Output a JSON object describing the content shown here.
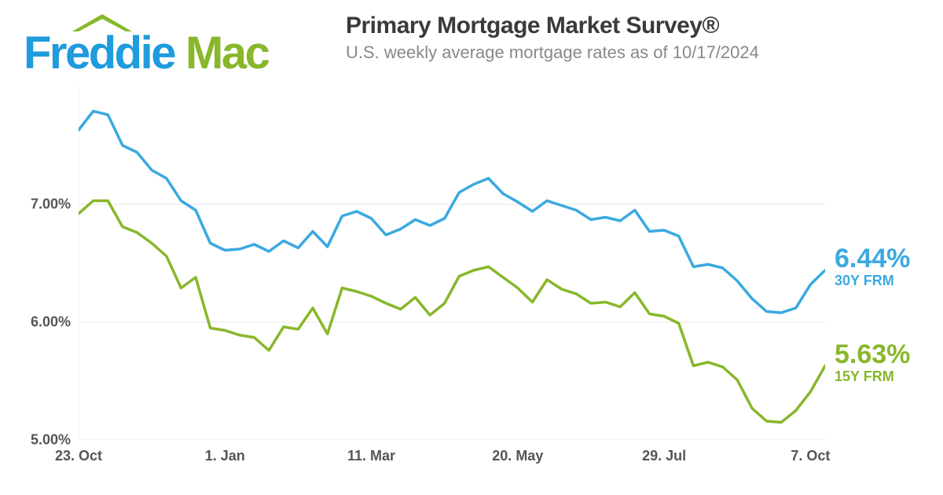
{
  "logo": {
    "word1": "Freddie",
    "word2": "Mac",
    "color1": "#1f9bde",
    "color2": "#88b72a",
    "roof_color": "#88b72a"
  },
  "title": "Primary Mortgage Market Survey®",
  "subtitle": "U.S. weekly average mortgage rates as of 10/17/2024",
  "title_fontsize": 30,
  "subtitle_fontsize": 22,
  "chart": {
    "type": "line",
    "background_color": "#ffffff",
    "grid_color": "#e8e8e8",
    "axis_color": "#e8e8e8",
    "ylim": [
      5.0,
      8.0
    ],
    "y_ticks": [
      {
        "value": 5.0,
        "label": "5.00%"
      },
      {
        "value": 6.0,
        "label": "6.00%"
      },
      {
        "value": 7.0,
        "label": "7.00%"
      }
    ],
    "x_count": 52,
    "x_ticks": [
      {
        "index": 0,
        "label": "23. Oct"
      },
      {
        "index": 10,
        "label": "1. Jan"
      },
      {
        "index": 20,
        "label": "11. Mar"
      },
      {
        "index": 30,
        "label": "20. May"
      },
      {
        "index": 40,
        "label": "29. Jul"
      },
      {
        "index": 50,
        "label": "7. Oct"
      }
    ],
    "tick_fontsize": 18,
    "line_width": 3.5,
    "series": [
      {
        "name": "30Y FRM",
        "color": "#3aa9e0",
        "end_rate": "6.44%",
        "end_label_fontsize": 34,
        "end_name_fontsize": 18,
        "values": [
          7.63,
          7.79,
          7.76,
          7.5,
          7.44,
          7.29,
          7.22,
          7.03,
          6.95,
          6.67,
          6.61,
          6.62,
          6.66,
          6.6,
          6.69,
          6.63,
          6.77,
          6.64,
          6.9,
          6.94,
          6.88,
          6.74,
          6.79,
          6.87,
          6.82,
          6.88,
          7.1,
          7.17,
          7.22,
          7.09,
          7.02,
          6.94,
          7.03,
          6.99,
          6.95,
          6.87,
          6.89,
          6.86,
          6.95,
          6.77,
          6.78,
          6.73,
          6.47,
          6.49,
          6.46,
          6.35,
          6.2,
          6.09,
          6.08,
          6.12,
          6.32,
          6.44
        ]
      },
      {
        "name": "15Y FRM",
        "color": "#88b72a",
        "end_rate": "5.63%",
        "end_label_fontsize": 34,
        "end_name_fontsize": 18,
        "values": [
          6.92,
          7.03,
          7.03,
          6.81,
          6.76,
          6.67,
          6.56,
          6.29,
          6.38,
          5.95,
          5.93,
          5.89,
          5.87,
          5.76,
          5.96,
          5.94,
          6.12,
          5.9,
          6.29,
          6.26,
          6.22,
          6.16,
          6.11,
          6.21,
          6.06,
          6.16,
          6.39,
          6.44,
          6.47,
          6.38,
          6.29,
          6.17,
          6.36,
          6.28,
          6.24,
          6.16,
          6.17,
          6.13,
          6.25,
          6.07,
          6.05,
          5.99,
          5.63,
          5.66,
          5.62,
          5.51,
          5.27,
          5.16,
          5.15,
          5.25,
          5.41,
          5.63
        ]
      }
    ]
  }
}
